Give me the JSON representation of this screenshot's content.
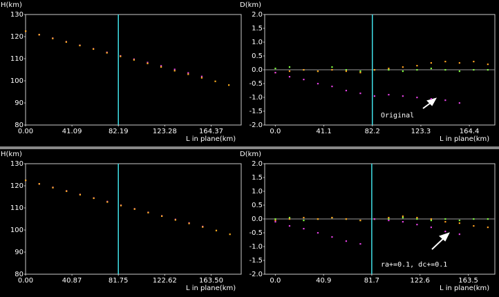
{
  "chart_data": [
    {
      "type": "scatter",
      "y_label": "H(km)",
      "x_label": "L in plane(km)",
      "xlim": [
        0,
        191
      ],
      "ylim": [
        80,
        130
      ],
      "xticks": [
        {
          "value": 0,
          "label": "0.00"
        },
        41.09,
        82.19,
        123.28,
        164.37
      ],
      "yticks": [
        80,
        90,
        100,
        110,
        120,
        130
      ],
      "vline": {
        "value": 82.19,
        "color": "#40e0e8"
      },
      "x": [
        0,
        12,
        24,
        36,
        48,
        60,
        72,
        84,
        96,
        108,
        120,
        132,
        144,
        156,
        168,
        180
      ],
      "series": [
        {
          "color": "#e040e0",
          "values": [
            122.5,
            120.9,
            119.3,
            117.7,
            116.1,
            114.5,
            112.9,
            111.3,
            109.8,
            108.3,
            106.8,
            105.2,
            103.6,
            102.0,
            null,
            null
          ]
        },
        {
          "color": "#ffb020",
          "values": [
            122.5,
            120.9,
            119.2,
            117.6,
            116.0,
            114.4,
            112.7,
            111.1,
            109.5,
            107.9,
            106.3,
            104.6,
            103.0,
            101.4,
            99.8,
            98.1
          ]
        }
      ]
    },
    {
      "type": "scatter",
      "y_label": "D(km)",
      "x_label": "L in plane(km)",
      "xlim": [
        -9,
        186
      ],
      "ylim": [
        -2,
        2
      ],
      "xticks": [
        {
          "value": 0,
          "label": "0.0"
        },
        41.1,
        82.2,
        123.3,
        164.4
      ],
      "yticks": [
        {
          "value": -2,
          "label": "-2.0"
        },
        -1.5,
        {
          "value": -1,
          "label": "-1.0"
        },
        -0.5,
        {
          "value": 0,
          "label": "0.0"
        },
        0.5,
        {
          "value": 1,
          "label": "1.0"
        },
        1.5,
        {
          "value": 2,
          "label": "2.0"
        }
      ],
      "vline": {
        "value": 82.2,
        "color": "#40e0e8"
      },
      "zero_line": true,
      "annotation": "Original",
      "x": [
        0,
        12,
        24,
        36,
        48,
        60,
        72,
        84,
        96,
        108,
        120,
        132,
        144,
        156,
        168,
        180
      ],
      "series": [
        {
          "color": "#80ff40",
          "values": [
            0.05,
            0.1,
            0.0,
            -0.05,
            0.1,
            0.0,
            -0.05,
            0.0,
            0.0,
            -0.05,
            0.0,
            0.05,
            0.0,
            -0.05,
            0.0,
            0.0
          ]
        },
        {
          "color": "#ffa020",
          "values": [
            -0.1,
            -0.05,
            0.0,
            -0.05,
            0.0,
            -0.05,
            -0.1,
            0.0,
            0.05,
            0.1,
            0.15,
            0.25,
            0.3,
            0.25,
            0.3,
            0.2
          ]
        },
        {
          "color": "#e040e0",
          "values": [
            -0.1,
            -0.25,
            -0.35,
            -0.5,
            -0.6,
            -0.75,
            -0.85,
            -0.95,
            -0.9,
            -0.95,
            -1.0,
            -1.05,
            -1.1,
            -1.2,
            null,
            null
          ]
        }
      ]
    },
    {
      "type": "scatter",
      "y_label": "H(km)",
      "x_label": "L in plane(km)",
      "xlim": [
        0,
        190
      ],
      "ylim": [
        80,
        130
      ],
      "xticks": [
        {
          "value": 0,
          "label": "0.00"
        },
        40.87,
        81.75,
        122.62,
        {
          "value": 163.5,
          "label": "163.50"
        }
      ],
      "yticks": [
        80,
        90,
        100,
        110,
        120,
        130
      ],
      "vline": {
        "value": 81.75,
        "color": "#40e0e8"
      },
      "x": [
        0,
        12,
        24,
        36,
        48,
        60,
        72,
        84,
        96,
        108,
        120,
        132,
        144,
        156,
        168,
        180
      ],
      "series": [
        {
          "color": "#e040e0",
          "values": [
            122.5,
            120.9,
            119.3,
            117.7,
            116.1,
            114.5,
            112.9,
            111.2,
            109.6,
            108.0,
            106.4,
            104.8,
            103.2,
            101.6,
            null,
            null
          ]
        },
        {
          "color": "#ffb020",
          "values": [
            122.5,
            120.9,
            119.2,
            117.6,
            116.0,
            114.4,
            112.7,
            111.1,
            109.5,
            107.9,
            106.3,
            104.6,
            103.0,
            101.4,
            99.8,
            98.1
          ]
        }
      ]
    },
    {
      "type": "scatter",
      "y_label": "D(km)",
      "x_label": "L in plane(km)",
      "xlim": [
        -9,
        186
      ],
      "ylim": [
        -2,
        2
      ],
      "xticks": [
        {
          "value": 0,
          "label": "0.0"
        },
        40.9,
        81.7,
        122.6,
        163.5
      ],
      "yticks": [
        {
          "value": -2,
          "label": "-2.0"
        },
        -1.5,
        {
          "value": -1,
          "label": "-1.0"
        },
        -0.5,
        {
          "value": 0,
          "label": "0.0"
        },
        0.5,
        {
          "value": 1,
          "label": "1.0"
        },
        1.5,
        {
          "value": 2,
          "label": "2.0"
        }
      ],
      "vline": {
        "value": 81.7,
        "color": "#40e0e8"
      },
      "zero_line": true,
      "annotation": "ra+=0.1, dc+=0.1",
      "x": [
        0,
        12,
        24,
        36,
        48,
        60,
        72,
        84,
        96,
        108,
        120,
        132,
        144,
        156,
        168,
        180
      ],
      "series": [
        {
          "color": "#80ff40",
          "values": [
            0.0,
            0.05,
            -0.05,
            0.0,
            0.05,
            0.0,
            -0.05,
            0.0,
            0.0,
            0.05,
            0.0,
            -0.05,
            0.0,
            -0.05,
            0.0,
            0.0
          ]
        },
        {
          "color": "#ffa020",
          "values": [
            -0.05,
            0.0,
            0.05,
            0.0,
            0.05,
            0.0,
            -0.05,
            0.0,
            0.05,
            0.1,
            0.05,
            0.0,
            -0.1,
            -0.15,
            -0.25,
            -0.3
          ]
        },
        {
          "color": "#e040e0",
          "values": [
            -0.1,
            -0.25,
            -0.35,
            -0.5,
            -0.65,
            -0.8,
            -0.9,
            0.0,
            -0.05,
            -0.1,
            -0.2,
            -0.3,
            -0.45,
            -0.55,
            null,
            null
          ]
        }
      ]
    }
  ]
}
